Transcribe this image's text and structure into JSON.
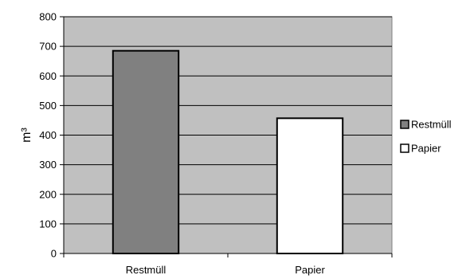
{
  "chart_data": {
    "type": "bar",
    "categories": [
      "Restmüll",
      "Papier"
    ],
    "values": [
      685,
      457
    ],
    "ylabel": "m³",
    "xlabel": "",
    "ylim": [
      0,
      800
    ],
    "yticks": [
      0,
      100,
      200,
      300,
      400,
      500,
      600,
      700,
      800
    ],
    "grid": true,
    "legend_position": "right",
    "legend": [
      {
        "label": "Restmüll",
        "color": "#808080"
      },
      {
        "label": "Papier",
        "color": "#ffffff"
      }
    ],
    "bar_colors": [
      "#808080",
      "#ffffff"
    ],
    "plot_background": "#c0c0c0"
  }
}
